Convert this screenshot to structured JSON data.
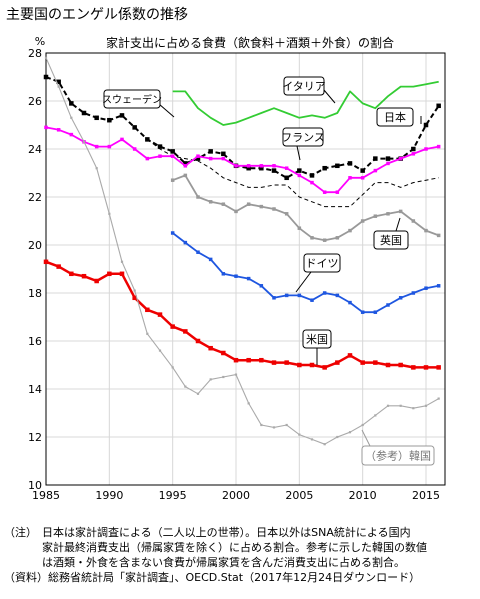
{
  "title": "主要国のエンゲル係数の推移",
  "notes": {
    "label": "（注）",
    "lines": [
      "日本は家計調査による（二人以上の世帯）。日本以外はSNA統計による国内",
      "家計最終消費支出（帰属家賃を除く）に占める割合。参考に示した韓国の数値",
      "は酒類・外食を含まない食費が帰属家賃を含んだ消費支出に占める割合。"
    ],
    "source": "（資料）総務省統計局「家計調査」、OECD.Stat（2017年12月24日ダウンロード）"
  },
  "chart_data": {
    "type": "line",
    "title": "家計支出に占める食費（飲食料＋酒類＋外食）の割合",
    "ylabel": "%",
    "xlabel": "",
    "xlim": [
      1985,
      2016.5
    ],
    "ylim": [
      10,
      28
    ],
    "xticks": [
      1985,
      1990,
      1995,
      2000,
      2005,
      2010,
      2015
    ],
    "yticks": [
      10,
      12,
      14,
      16,
      18,
      20,
      22,
      24,
      26,
      28
    ],
    "grid": true,
    "series": [
      {
        "name": "日本",
        "color": "#000000",
        "style": "dashed-markers",
        "start": 1985,
        "values": [
          27.0,
          26.8,
          25.9,
          25.5,
          25.3,
          25.2,
          25.4,
          24.9,
          24.4,
          24.1,
          23.9,
          23.4,
          23.6,
          23.9,
          23.8,
          23.3,
          23.2,
          23.2,
          23.1,
          22.8,
          23.1,
          22.9,
          23.2,
          23.3,
          23.4,
          23.1,
          23.6,
          23.6,
          23.6,
          24.0,
          25.0,
          25.8
        ]
      },
      {
        "name": "スウェーデン",
        "color": "#000000",
        "style": "dash",
        "start": 1993,
        "values": [
          24.4,
          24.0,
          23.7,
          23.6,
          23.5,
          23.2,
          22.8,
          22.6,
          22.4,
          22.4,
          22.5,
          22.5,
          22.0,
          21.8,
          21.6,
          21.6,
          21.6,
          22.1,
          22.6,
          22.6,
          22.4,
          22.6,
          22.7,
          22.8
        ]
      },
      {
        "name": "イタリア",
        "color": "#33cc33",
        "style": "solid",
        "start": 1995,
        "values": [
          26.4,
          26.4,
          25.7,
          25.3,
          25.0,
          25.1,
          25.3,
          25.5,
          25.7,
          25.5,
          25.3,
          25.4,
          25.3,
          25.5,
          26.4,
          25.9,
          25.7,
          26.2,
          26.6,
          26.6,
          26.7,
          26.8
        ]
      },
      {
        "name": "フランス",
        "color": "#ff00ff",
        "style": "markers",
        "start": 1985,
        "values": [
          24.9,
          24.8,
          24.6,
          24.3,
          24.1,
          24.1,
          24.4,
          24.0,
          23.6,
          23.7,
          23.7,
          23.3,
          23.7,
          23.6,
          23.6,
          23.3,
          23.3,
          23.3,
          23.3,
          23.2,
          22.9,
          22.6,
          22.2,
          22.2,
          22.8,
          22.8,
          23.1,
          23.4,
          23.6,
          23.8,
          24.0,
          24.1
        ]
      },
      {
        "name": "英国",
        "color": "#999999",
        "style": "markers",
        "start": 1995,
        "values": [
          22.7,
          22.9,
          22.0,
          21.8,
          21.7,
          21.4,
          21.7,
          21.6,
          21.5,
          21.3,
          20.7,
          20.3,
          20.2,
          20.3,
          20.6,
          21.0,
          21.2,
          21.3,
          21.4,
          21.0,
          20.6,
          20.4
        ]
      },
      {
        "name": "ドイツ",
        "color": "#1e56e0",
        "style": "markers",
        "start": 1995,
        "values": [
          20.5,
          20.1,
          19.7,
          19.4,
          18.8,
          18.7,
          18.6,
          18.3,
          17.8,
          17.9,
          17.9,
          17.7,
          18.0,
          17.9,
          17.6,
          17.2,
          17.2,
          17.5,
          17.8,
          18.0,
          18.2,
          18.3
        ]
      },
      {
        "name": "米国",
        "color": "#ee0000",
        "style": "markers-thick",
        "start": 1985,
        "values": [
          19.3,
          19.1,
          18.8,
          18.7,
          18.5,
          18.8,
          18.8,
          17.8,
          17.3,
          17.1,
          16.6,
          16.4,
          16.0,
          15.7,
          15.5,
          15.2,
          15.2,
          15.2,
          15.1,
          15.1,
          15.0,
          15.0,
          14.9,
          15.1,
          15.4,
          15.1,
          15.1,
          15.0,
          15.0,
          14.9,
          14.9,
          14.9
        ]
      },
      {
        "name": "（参考）韓国",
        "color": "#aaaaaa",
        "style": "markers-small",
        "start": 1985,
        "values": [
          27.8,
          26.6,
          25.3,
          24.3,
          23.2,
          21.3,
          19.3,
          18.1,
          16.3,
          15.6,
          14.9,
          14.1,
          13.8,
          14.4,
          14.5,
          14.6,
          13.4,
          12.5,
          12.4,
          12.5,
          12.1,
          11.9,
          11.7,
          12.0,
          12.2,
          12.5,
          12.9,
          13.3,
          13.3,
          13.2,
          13.3,
          13.6
        ]
      }
    ]
  }
}
